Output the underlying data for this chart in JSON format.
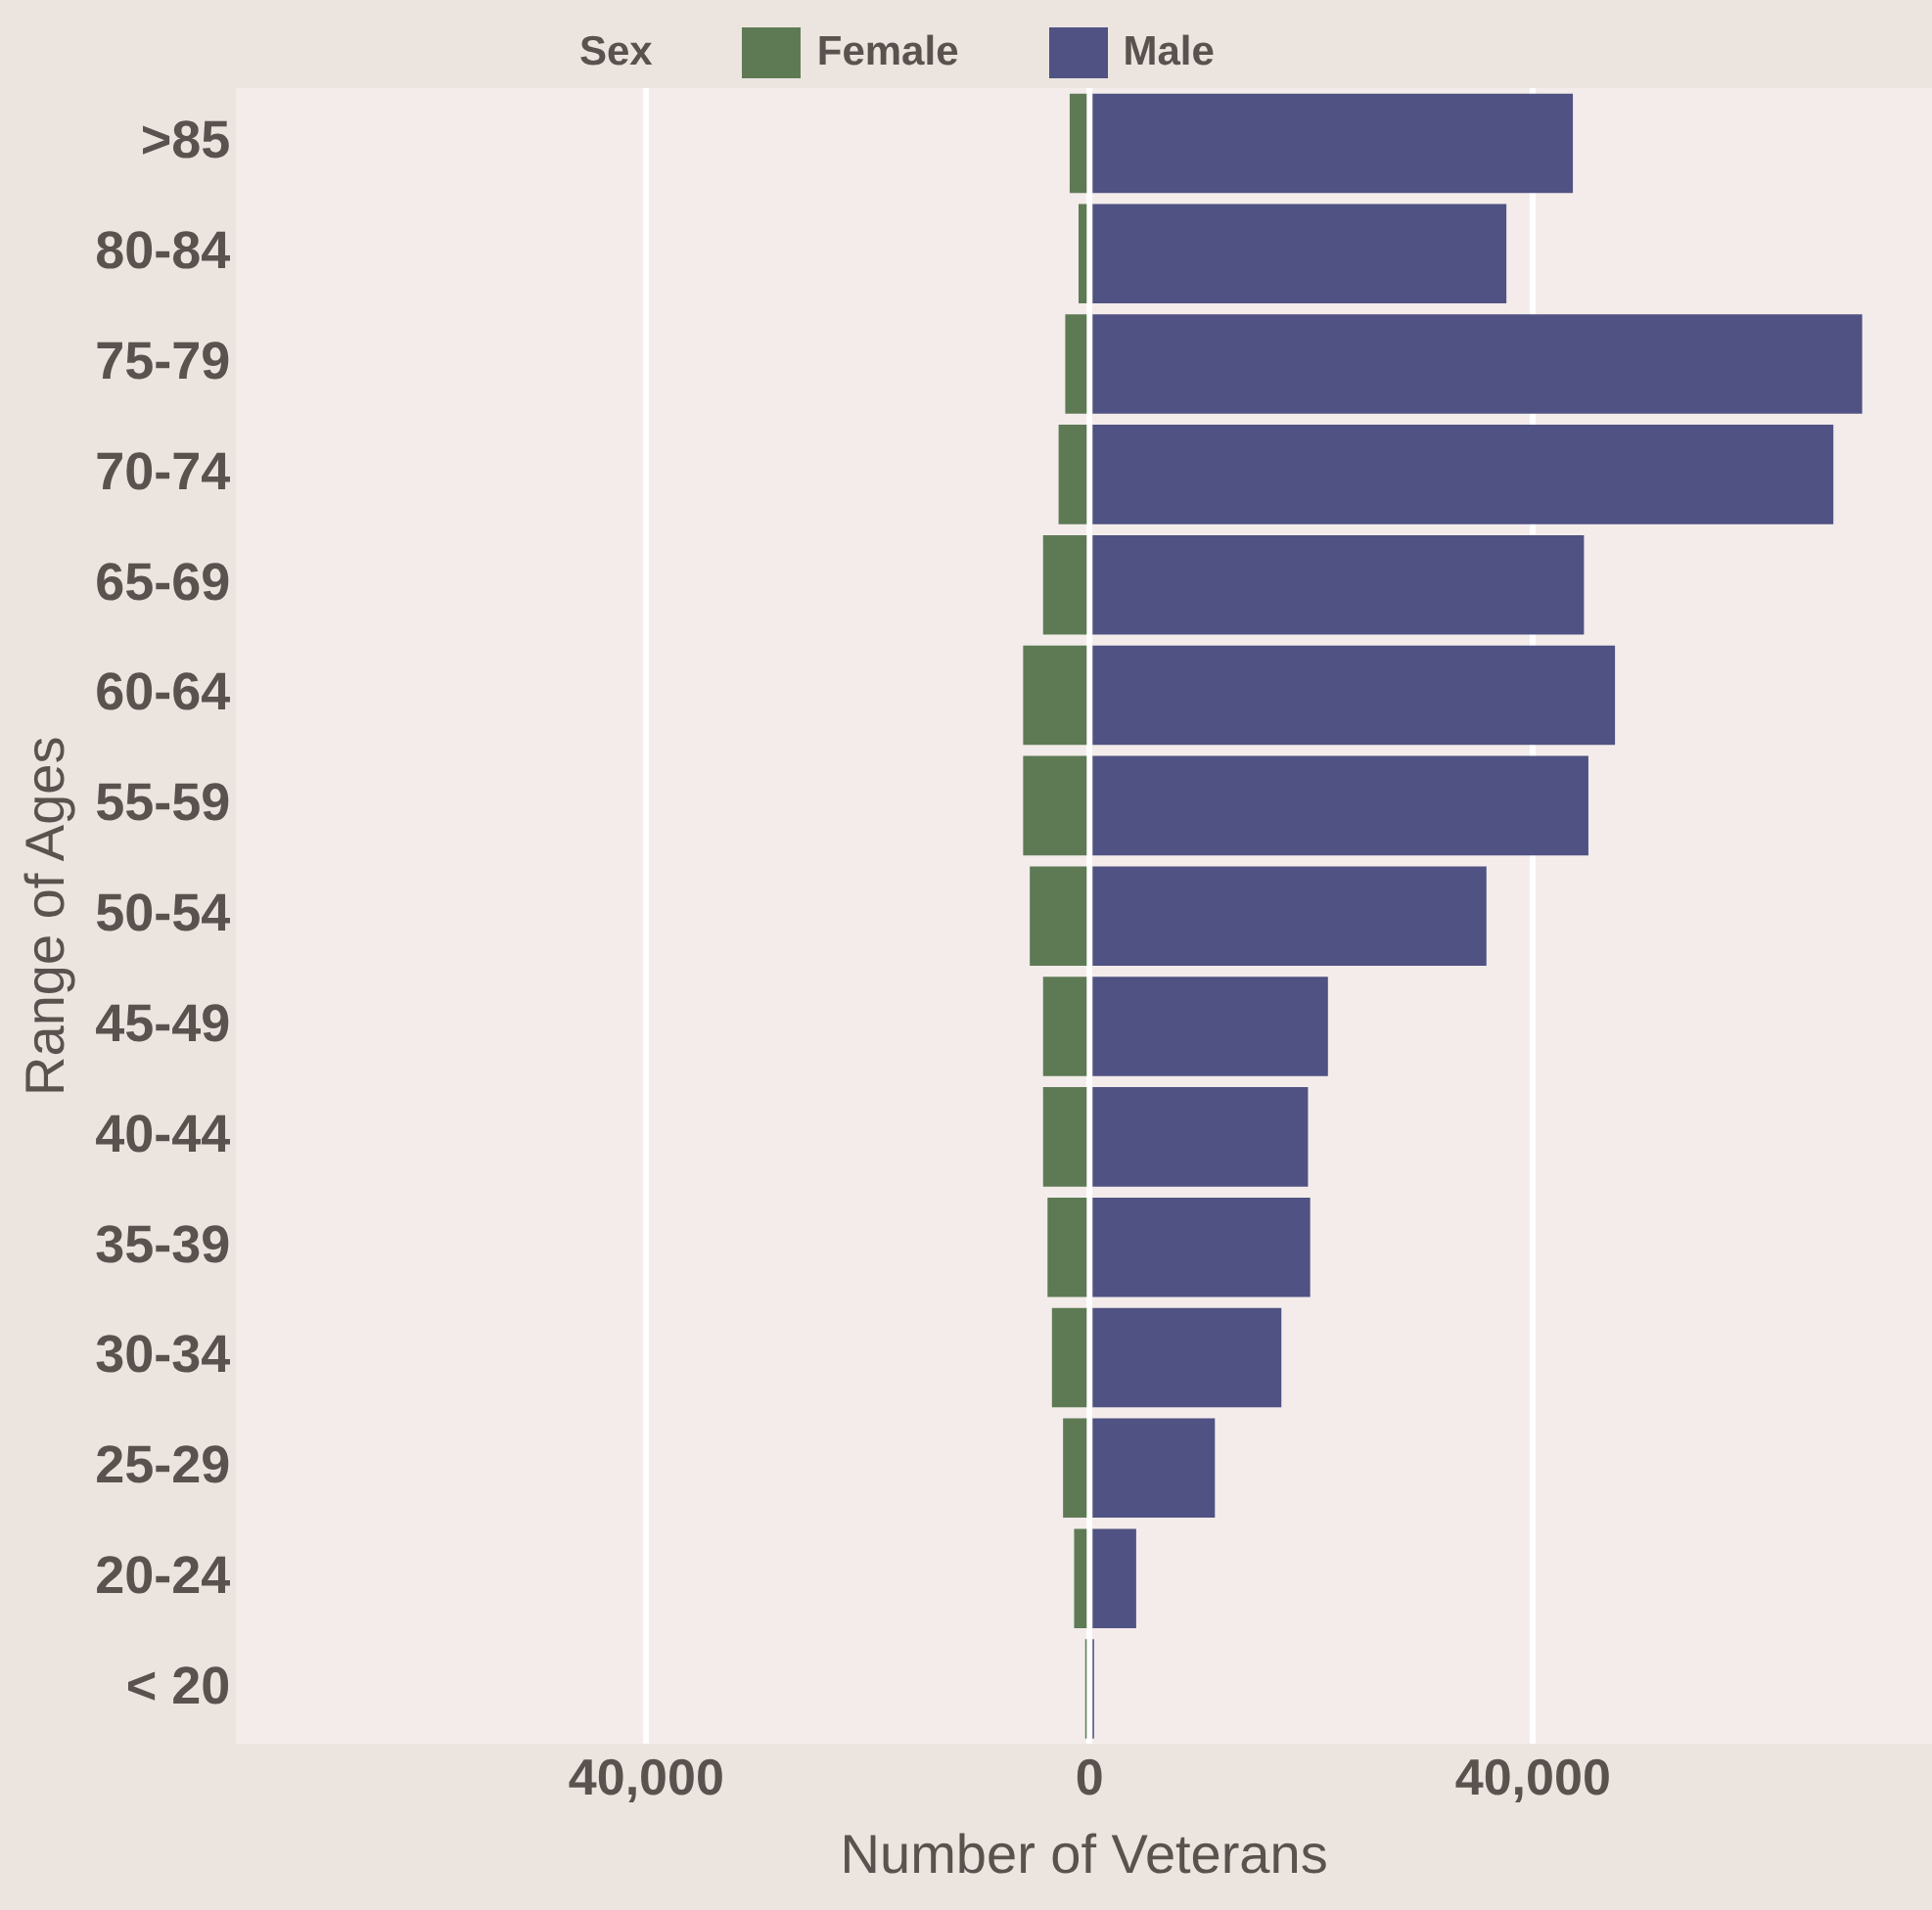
{
  "chart_data": {
    "type": "bar",
    "orientation": "horizontal",
    "stacked": true,
    "xlabel": "Number of Veterans",
    "ylabel": "Range of Ages",
    "legend_title": "Sex",
    "legend": "top",
    "categories": [
      ">85",
      "80-84",
      "75-79",
      "70-74",
      "65-69",
      "60-64",
      "55-59",
      "50-54",
      "45-49",
      "40-44",
      "35-39",
      "30-34",
      "25-29",
      "20-24",
      "< 20"
    ],
    "series": [
      {
        "name": "Female",
        "color": "#5e7a55",
        "values": [
          -1800,
          -1000,
          -2200,
          -2800,
          -4200,
          -6000,
          -6000,
          -5400,
          -4200,
          -4200,
          -3800,
          -3400,
          -2400,
          -1400,
          -400
        ]
      },
      {
        "name": "Male",
        "color": "#4f5282",
        "values": [
          43600,
          37600,
          69700,
          67100,
          44600,
          47400,
          45000,
          35800,
          21500,
          19700,
          19900,
          17300,
          11300,
          4200,
          400
        ]
      }
    ],
    "xlim": [
      -77000,
      76000
    ],
    "xticks": [
      {
        "value": -40000,
        "label": "40,000"
      },
      0,
      {
        "value": 40000,
        "label": "40,000"
      }
    ],
    "grid": "x"
  }
}
